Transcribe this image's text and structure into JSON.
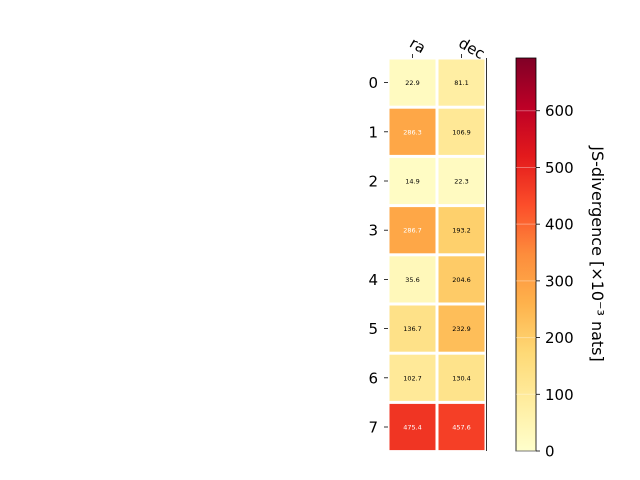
{
  "chart_data": {
    "type": "heatmap",
    "columns": [
      "ra",
      "dec"
    ],
    "rows": [
      "0",
      "1",
      "2",
      "3",
      "4",
      "5",
      "6",
      "7"
    ],
    "values": [
      [
        22.9,
        81.1
      ],
      [
        286.3,
        106.9
      ],
      [
        14.9,
        22.3
      ],
      [
        286.7,
        193.2
      ],
      [
        35.6,
        204.6
      ],
      [
        136.7,
        232.9
      ],
      [
        102.7,
        130.4
      ],
      [
        475.4,
        457.6
      ]
    ],
    "colorbar": {
      "label": "JS-divergence [×10⁻³ nats]",
      "range": [
        0,
        693
      ],
      "ticks": [
        0,
        100,
        200,
        300,
        400,
        500,
        600
      ],
      "colormap": "YlOrRd"
    }
  }
}
